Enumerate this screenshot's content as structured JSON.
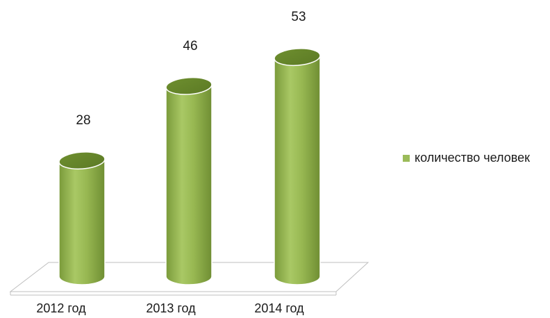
{
  "chart_data": {
    "type": "bar",
    "categories": [
      "2012 год",
      "2013 год",
      "2014 год"
    ],
    "series": [
      {
        "name": "количество человек",
        "values": [
          28,
          46,
          53
        ],
        "color": "#9bbb59"
      }
    ],
    "data_labels": [
      "28",
      "46",
      "53"
    ],
    "legend_position": "right",
    "grid": false
  }
}
